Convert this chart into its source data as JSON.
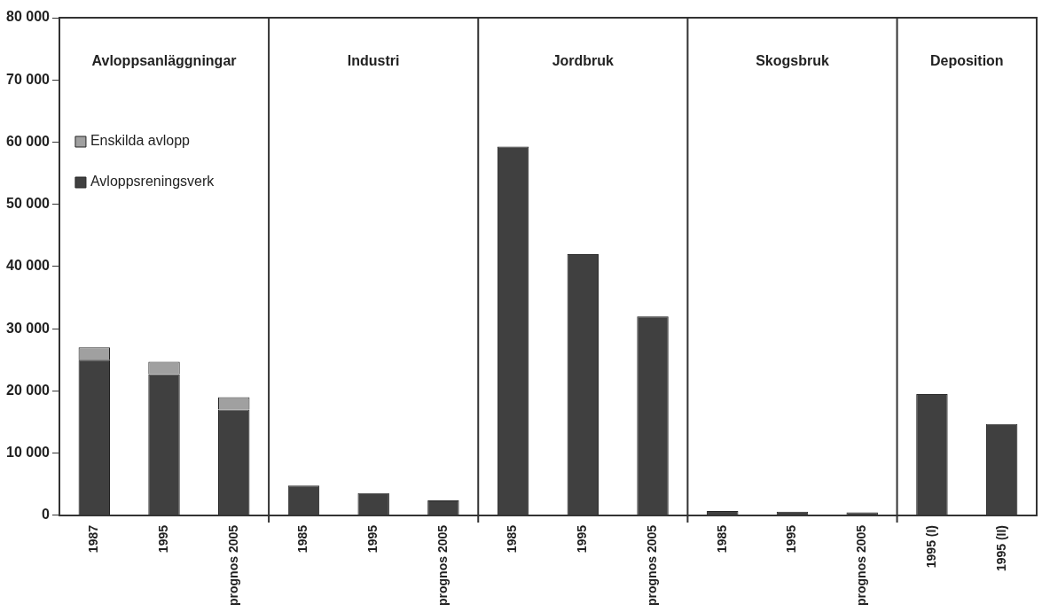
{
  "chart_data": {
    "type": "bar",
    "stacked": true,
    "categories": [
      "1987",
      "1995",
      "prognos 2005",
      "1985",
      "1995",
      "prognos 2005",
      "1985",
      "1995",
      "prognos 2005",
      "1985",
      "1995",
      "prognos 2005",
      "1995 (I)",
      "1995 (II)"
    ],
    "series": [
      {
        "name": "Avloppsreningsverk",
        "color": "#404040",
        "values": [
          25000,
          22700,
          17000,
          4800,
          3600,
          2400,
          59300,
          42000,
          32000,
          700,
          600,
          500,
          19500,
          14700
        ]
      },
      {
        "name": "Enskilda avlopp",
        "color": "#a0a0a0",
        "values": [
          2000,
          2000,
          2000,
          null,
          null,
          null,
          null,
          null,
          null,
          null,
          null,
          null,
          null,
          null
        ]
      }
    ],
    "ylim": [
      0,
      80000
    ],
    "yticks": [
      {
        "value": 0,
        "label": "0"
      },
      {
        "value": 10000,
        "label": "10 000"
      },
      {
        "value": 20000,
        "label": "20 000"
      },
      {
        "value": 30000,
        "label": "30 000"
      },
      {
        "value": 40000,
        "label": "40 000"
      },
      {
        "value": 50000,
        "label": "50 000"
      },
      {
        "value": 60000,
        "label": "60 000"
      },
      {
        "value": 70000,
        "label": "70 000"
      },
      {
        "value": 80000,
        "label": "80 000"
      }
    ],
    "annotations": [
      "Avloppsanläggningar",
      "Industri",
      "Jordbruk",
      "Skogsbruk",
      "Deposition"
    ],
    "grid": false,
    "legend": "top left"
  }
}
